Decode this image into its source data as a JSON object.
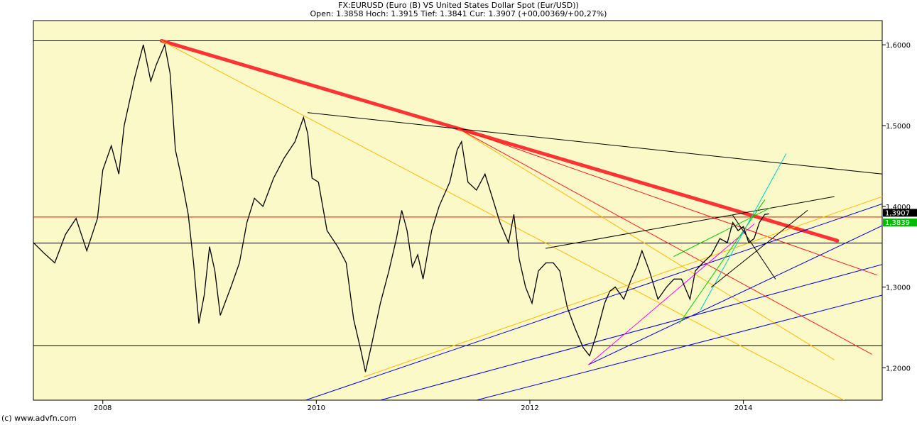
{
  "header": {
    "title": "FX:EURUSD (Euro (B) VS United States Dollar Spot (Eur/USD))",
    "quote": "Open: 1.3858 Hoch: 1.3915 Tief: 1.3841 Cur: 1.3907 (+00,00369/+00,27%)"
  },
  "footer": {
    "copyright": "(c) www.advfn.com"
  },
  "colors": {
    "background": "#fbf9c8",
    "price": "#000000",
    "trend_red": "#ff1a1a"
  },
  "chart_data": {
    "type": "line",
    "title": "FX:EURUSD (Euro (B) VS United States Dollar Spot (Eur/USD))",
    "xlim": [
      2007.35,
      2015.3
    ],
    "ylim": [
      1.16,
      1.63
    ],
    "x_ticks": [
      {
        "v": 2008,
        "label": "2008"
      },
      {
        "v": 2010,
        "label": "2010"
      },
      {
        "v": 2012,
        "label": "2012"
      },
      {
        "v": 2014,
        "label": "2014"
      }
    ],
    "y_ticks": [
      {
        "v": 1.2,
        "label": "1,2000"
      },
      {
        "v": 1.3,
        "label": "1,3000"
      },
      {
        "v": 1.4,
        "label": "1,4000"
      },
      {
        "v": 1.5,
        "label": "1,5000"
      },
      {
        "v": 1.6,
        "label": "1,6000"
      }
    ],
    "current_labels": [
      {
        "value": 1.3907,
        "label": "1,3907",
        "bg": "#000000",
        "fg": "#ffffff"
      },
      {
        "value": 1.3839,
        "label": "1,3839",
        "bg": "#00bb00",
        "fg": "#ffffff"
      }
    ],
    "price_series": [
      [
        2007.35,
        1.355
      ],
      [
        2007.45,
        1.342
      ],
      [
        2007.55,
        1.33
      ],
      [
        2007.65,
        1.365
      ],
      [
        2007.75,
        1.385
      ],
      [
        2007.85,
        1.345
      ],
      [
        2007.95,
        1.385
      ],
      [
        2008.0,
        1.445
      ],
      [
        2008.08,
        1.475
      ],
      [
        2008.15,
        1.44
      ],
      [
        2008.2,
        1.5
      ],
      [
        2008.3,
        1.56
      ],
      [
        2008.38,
        1.6
      ],
      [
        2008.45,
        1.555
      ],
      [
        2008.5,
        1.575
      ],
      [
        2008.58,
        1.6
      ],
      [
        2008.63,
        1.565
      ],
      [
        2008.68,
        1.47
      ],
      [
        2008.73,
        1.44
      ],
      [
        2008.8,
        1.39
      ],
      [
        2008.85,
        1.33
      ],
      [
        2008.9,
        1.255
      ],
      [
        2008.95,
        1.29
      ],
      [
        2009.0,
        1.35
      ],
      [
        2009.05,
        1.32
      ],
      [
        2009.1,
        1.265
      ],
      [
        2009.2,
        1.3
      ],
      [
        2009.28,
        1.33
      ],
      [
        2009.35,
        1.38
      ],
      [
        2009.42,
        1.41
      ],
      [
        2009.5,
        1.4
      ],
      [
        2009.6,
        1.435
      ],
      [
        2009.7,
        1.46
      ],
      [
        2009.8,
        1.48
      ],
      [
        2009.88,
        1.51
      ],
      [
        2009.92,
        1.49
      ],
      [
        2009.96,
        1.435
      ],
      [
        2010.02,
        1.43
      ],
      [
        2010.1,
        1.37
      ],
      [
        2010.2,
        1.35
      ],
      [
        2010.28,
        1.33
      ],
      [
        2010.35,
        1.26
      ],
      [
        2010.42,
        1.22
      ],
      [
        2010.46,
        1.195
      ],
      [
        2010.52,
        1.23
      ],
      [
        2010.6,
        1.28
      ],
      [
        2010.68,
        1.32
      ],
      [
        2010.75,
        1.36
      ],
      [
        2010.8,
        1.395
      ],
      [
        2010.85,
        1.37
      ],
      [
        2010.9,
        1.325
      ],
      [
        2010.95,
        1.34
      ],
      [
        2011.0,
        1.31
      ],
      [
        2011.08,
        1.37
      ],
      [
        2011.15,
        1.4
      ],
      [
        2011.25,
        1.43
      ],
      [
        2011.32,
        1.47
      ],
      [
        2011.36,
        1.48
      ],
      [
        2011.42,
        1.43
      ],
      [
        2011.5,
        1.42
      ],
      [
        2011.58,
        1.44
      ],
      [
        2011.65,
        1.41
      ],
      [
        2011.72,
        1.38
      ],
      [
        2011.8,
        1.355
      ],
      [
        2011.85,
        1.39
      ],
      [
        2011.9,
        1.335
      ],
      [
        2011.96,
        1.3
      ],
      [
        2012.02,
        1.28
      ],
      [
        2012.08,
        1.32
      ],
      [
        2012.15,
        1.33
      ],
      [
        2012.22,
        1.33
      ],
      [
        2012.28,
        1.32
      ],
      [
        2012.35,
        1.275
      ],
      [
        2012.42,
        1.25
      ],
      [
        2012.5,
        1.225
      ],
      [
        2012.56,
        1.215
      ],
      [
        2012.62,
        1.24
      ],
      [
        2012.7,
        1.28
      ],
      [
        2012.75,
        1.295
      ],
      [
        2012.8,
        1.3
      ],
      [
        2012.88,
        1.285
      ],
      [
        2012.95,
        1.31
      ],
      [
        2013.0,
        1.325
      ],
      [
        2013.05,
        1.345
      ],
      [
        2013.12,
        1.32
      ],
      [
        2013.2,
        1.285
      ],
      [
        2013.28,
        1.3
      ],
      [
        2013.35,
        1.31
      ],
      [
        2013.42,
        1.31
      ],
      [
        2013.5,
        1.285
      ],
      [
        2013.55,
        1.32
      ],
      [
        2013.62,
        1.33
      ],
      [
        2013.7,
        1.34
      ],
      [
        2013.78,
        1.36
      ],
      [
        2013.85,
        1.355
      ],
      [
        2013.9,
        1.38
      ],
      [
        2013.95,
        1.37
      ],
      [
        2014.0,
        1.375
      ],
      [
        2014.05,
        1.355
      ],
      [
        2014.1,
        1.36
      ],
      [
        2014.15,
        1.38
      ],
      [
        2014.2,
        1.39
      ],
      [
        2014.24,
        1.3907
      ]
    ],
    "h_lines": [
      {
        "y": 1.605,
        "color": "#000000"
      },
      {
        "y": 1.3868,
        "color": "#ff0000"
      },
      {
        "y": 1.3545,
        "color": "#000000"
      },
      {
        "y": 1.2275,
        "color": "#000000"
      }
    ],
    "trend_lines": [
      {
        "x1": 2008.55,
        "y1": 1.605,
        "x2": 2014.88,
        "y2": 1.3575,
        "color": "#ff3333",
        "width": 5
      },
      {
        "x1": 2008.55,
        "y1": 1.605,
        "x2": 2015.3,
        "y2": 1.135,
        "color": "#ffbb00",
        "width": 1
      },
      {
        "x1": 2009.92,
        "y1": 1.516,
        "x2": 2015.3,
        "y2": 1.44,
        "color": "#000000",
        "width": 1
      },
      {
        "x1": 2011.32,
        "y1": 1.497,
        "x2": 2014.85,
        "y2": 1.21,
        "color": "#ffbb00",
        "width": 1
      },
      {
        "x1": 2011.32,
        "y1": 1.497,
        "x2": 2015.2,
        "y2": 1.217,
        "color": "#ff1a1a",
        "width": 1
      },
      {
        "x1": 2011.32,
        "y1": 1.497,
        "x2": 2015.25,
        "y2": 1.315,
        "color": "#ff1a1a",
        "width": 1
      },
      {
        "x1": 2010.45,
        "y1": 1.189,
        "x2": 2015.3,
        "y2": 1.412,
        "color": "#ffbb00",
        "width": 1
      },
      {
        "x1": 2009.9,
        "y1": 1.16,
        "x2": 2015.3,
        "y2": 1.403,
        "color": "#0000dd",
        "width": 1
      },
      {
        "x1": 2010.6,
        "y1": 1.16,
        "x2": 2015.3,
        "y2": 1.328,
        "color": "#0000dd",
        "width": 1
      },
      {
        "x1": 2011.5,
        "y1": 1.16,
        "x2": 2015.3,
        "y2": 1.29,
        "color": "#0000dd",
        "width": 1
      },
      {
        "x1": 2012.55,
        "y1": 1.204,
        "x2": 2015.3,
        "y2": 1.376,
        "color": "#0000dd",
        "width": 1
      },
      {
        "x1": 2012.15,
        "y1": 1.348,
        "x2": 2014.85,
        "y2": 1.412,
        "color": "#000000",
        "width": 1
      },
      {
        "x1": 2012.55,
        "y1": 1.204,
        "x2": 2014.1,
        "y2": 1.378,
        "color": "#ff00ff",
        "width": 1
      },
      {
        "x1": 2013.4,
        "y1": 1.255,
        "x2": 2014.2,
        "y2": 1.408,
        "color": "#00cc00",
        "width": 1
      },
      {
        "x1": 2013.6,
        "y1": 1.272,
        "x2": 2014.4,
        "y2": 1.465,
        "color": "#00cccc",
        "width": 1
      },
      {
        "x1": 2013.35,
        "y1": 1.338,
        "x2": 2014.25,
        "y2": 1.398,
        "color": "#00cc00",
        "width": 1
      },
      {
        "x1": 2013.7,
        "y1": 1.3,
        "x2": 2014.6,
        "y2": 1.395,
        "color": "#000000",
        "width": 1
      },
      {
        "x1": 2013.9,
        "y1": 1.389,
        "x2": 2014.3,
        "y2": 1.31,
        "color": "#000000",
        "width": 1
      }
    ]
  }
}
